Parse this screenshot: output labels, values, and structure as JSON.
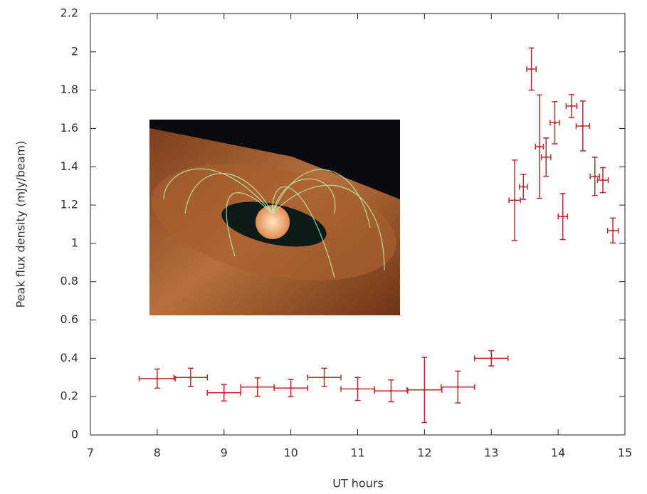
{
  "chart_data": {
    "type": "errorbar",
    "xlabel": "UT hours",
    "ylabel": "Peak flux density (mJy/beam)",
    "xlim": [
      7,
      15
    ],
    "xticks": [
      7,
      8,
      9,
      10,
      11,
      12,
      13,
      14,
      15
    ],
    "ylim": [
      0,
      2.2
    ],
    "yticks": [
      0,
      0.2,
      0.4,
      0.6,
      0.8,
      1,
      1.2,
      1.4,
      1.6,
      1.8,
      2,
      2.2
    ],
    "grid": false,
    "series": [
      {
        "color": "#c0282a",
        "x": [
          8.0,
          8.5,
          9.0,
          9.5,
          10.0,
          10.5,
          11.0,
          11.5,
          12.0,
          12.5,
          13.0,
          13.35,
          13.48,
          13.6,
          13.72,
          13.82,
          13.95,
          14.07,
          14.2,
          14.37,
          14.55,
          14.67,
          14.82
        ],
        "values": [
          0.294,
          0.3,
          0.22,
          0.25,
          0.245,
          0.3,
          0.24,
          0.23,
          0.235,
          0.25,
          0.4,
          1.225,
          1.295,
          1.91,
          1.505,
          1.45,
          1.63,
          1.14,
          1.717,
          1.613,
          1.35,
          1.33,
          1.067
        ],
        "xerr": [
          0.27,
          0.25,
          0.25,
          0.25,
          0.25,
          0.25,
          0.25,
          0.25,
          0.26,
          0.25,
          0.25,
          0.085,
          0.06,
          0.07,
          0.06,
          0.07,
          0.07,
          0.07,
          0.08,
          0.1,
          0.07,
          0.08,
          0.08
        ],
        "yerr": [
          0.05,
          0.048,
          0.043,
          0.048,
          0.045,
          0.048,
          0.06,
          0.057,
          0.17,
          0.083,
          0.04,
          0.21,
          0.065,
          0.11,
          0.27,
          0.1,
          0.11,
          0.12,
          0.06,
          0.13,
          0.1,
          0.065,
          0.065
        ]
      }
    ]
  }
}
